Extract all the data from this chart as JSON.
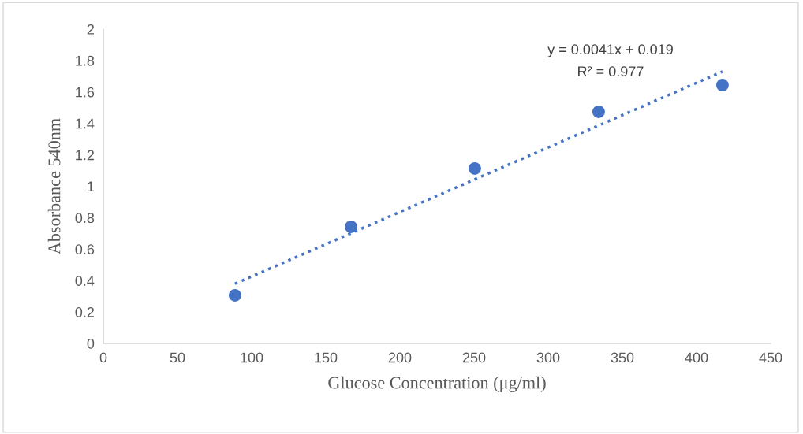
{
  "chart_data": {
    "type": "scatter",
    "xlabel": "Glucose Concentration (μg/ml)",
    "ylabel": "Absorbance 540nm",
    "xlim": [
      0,
      450
    ],
    "xticks": [
      0,
      50,
      100,
      150,
      200,
      250,
      300,
      350,
      400,
      450
    ],
    "ylim": [
      0,
      2
    ],
    "yticks": [
      0,
      {
        "value": 0.2,
        "label": "0.2"
      },
      {
        "value": 0.4,
        "label": "0.4"
      },
      {
        "value": 0.6,
        "label": "0.6"
      },
      {
        "value": 0.8,
        "label": "0.8"
      },
      1,
      {
        "value": 1.2,
        "label": "1.2"
      },
      {
        "value": 1.4,
        "label": "1.4"
      },
      {
        "value": 1.6,
        "label": "1.6"
      },
      {
        "value": 1.8,
        "label": "1.8"
      },
      2
    ],
    "grid": false,
    "legend": false,
    "series": [
      {
        "color": "#4472c4",
        "marker": "circle",
        "x": [
          88.8,
          167,
          250.5,
          334,
          417.5
        ],
        "values": [
          0.306,
          0.742,
          1.113,
          1.474,
          1.644
        ]
      },
      {
        "type": "line",
        "color": "#4472c4",
        "marker": "none",
        "line_style": "dotted",
        "x": [
          88.8,
          417.5
        ],
        "values": [
          0.38,
          1.73
        ]
      }
    ],
    "annotations": [
      "y = 0.0041x + 0.019",
      "R² = 0.977"
    ]
  }
}
